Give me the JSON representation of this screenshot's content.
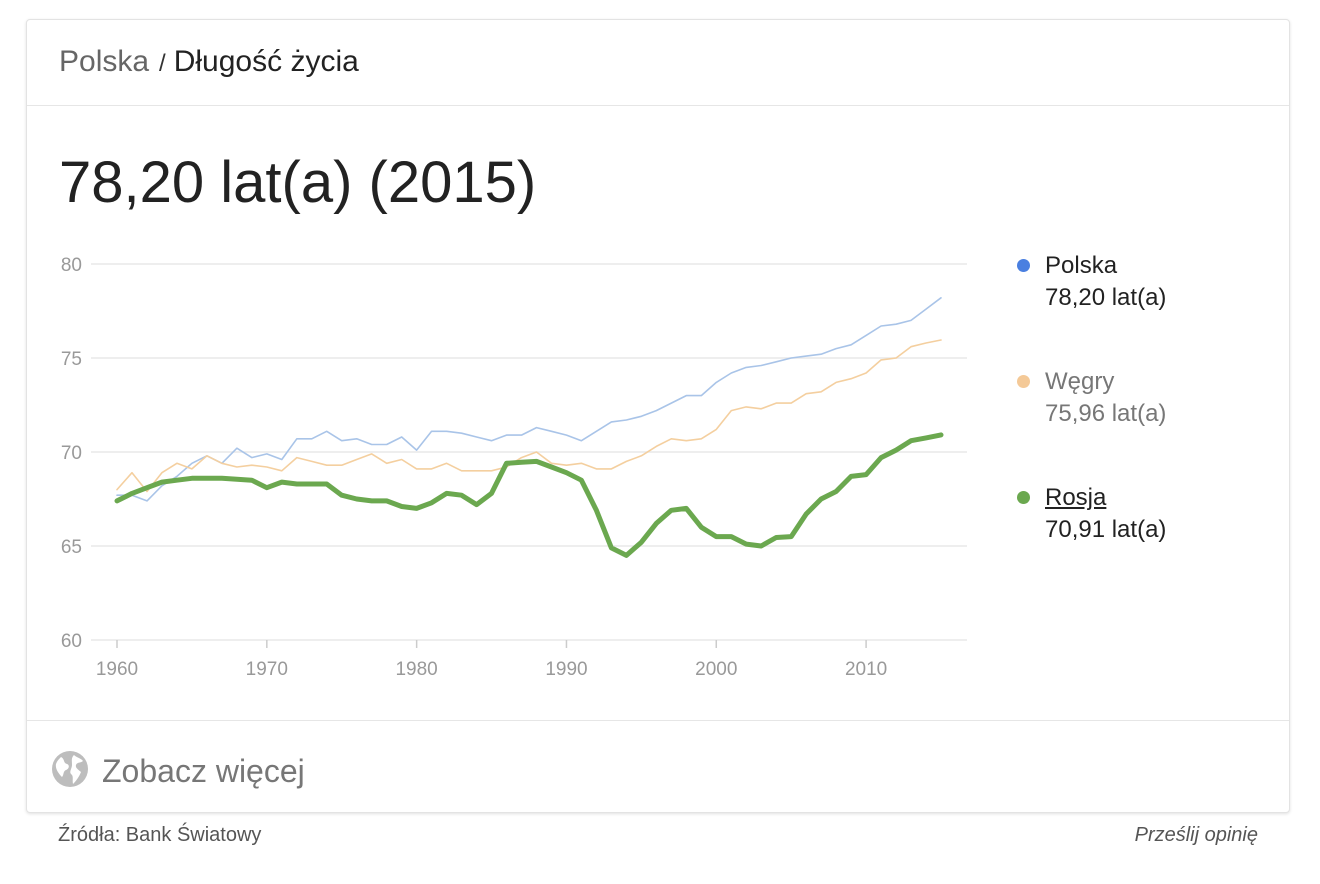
{
  "breadcrumb": {
    "parent": "Polska",
    "separator": "/",
    "current": "Długość życia"
  },
  "headline_value": "78,20 lat(a) (2015)",
  "legend": [
    {
      "name": "Polska",
      "value": "78,20 lat(a)",
      "color": "#4a7fe0",
      "selected": false
    },
    {
      "name": "Węgry",
      "value": "75,96 lat(a)",
      "color": "#f4c997",
      "selected": false
    },
    {
      "name": "Rosja",
      "value": "70,91 lat(a)",
      "color": "#6ba84f",
      "selected": true
    }
  ],
  "chart_data": {
    "type": "line",
    "ylim": [
      60,
      80
    ],
    "xlim": [
      1960,
      2015
    ],
    "yticks": [
      60,
      65,
      70,
      75,
      80
    ],
    "xticks": [
      1960,
      1970,
      1980,
      1990,
      2000,
      2010
    ],
    "grid": true,
    "legend_placement": "right",
    "series": [
      {
        "name": "Polska",
        "color": "#a9c4e8",
        "x": [
          1960,
          1961,
          1962,
          1963,
          1964,
          1965,
          1966,
          1967,
          1968,
          1969,
          1970,
          1971,
          1972,
          1973,
          1974,
          1975,
          1976,
          1977,
          1978,
          1979,
          1980,
          1981,
          1982,
          1983,
          1984,
          1985,
          1986,
          1987,
          1988,
          1989,
          1990,
          1991,
          1992,
          1993,
          1994,
          1995,
          1996,
          1997,
          1998,
          1999,
          2000,
          2001,
          2002,
          2003,
          2004,
          2005,
          2006,
          2007,
          2008,
          2009,
          2010,
          2011,
          2012,
          2013,
          2014,
          2015
        ],
        "values": [
          67.7,
          67.7,
          67.4,
          68.2,
          68.7,
          69.4,
          69.8,
          69.4,
          70.2,
          69.7,
          69.9,
          69.6,
          70.7,
          70.7,
          71.1,
          70.6,
          70.7,
          70.4,
          70.4,
          70.8,
          70.1,
          71.1,
          71.1,
          71.0,
          70.8,
          70.6,
          70.9,
          70.9,
          71.3,
          71.1,
          70.9,
          70.6,
          71.1,
          71.6,
          71.7,
          71.9,
          72.2,
          72.6,
          73.0,
          73.0,
          73.7,
          74.2,
          74.5,
          74.6,
          74.8,
          75.0,
          75.1,
          75.2,
          75.5,
          75.7,
          76.2,
          76.7,
          76.8,
          77.0,
          77.6,
          78.2
        ]
      },
      {
        "name": "Węgry",
        "color": "#f4cf9f",
        "x": [
          1960,
          1961,
          1962,
          1963,
          1964,
          1965,
          1966,
          1967,
          1968,
          1969,
          1970,
          1971,
          1972,
          1973,
          1974,
          1975,
          1976,
          1977,
          1978,
          1979,
          1980,
          1981,
          1982,
          1983,
          1984,
          1985,
          1986,
          1987,
          1988,
          1989,
          1990,
          1991,
          1992,
          1993,
          1994,
          1995,
          1996,
          1997,
          1998,
          1999,
          2000,
          2001,
          2002,
          2003,
          2004,
          2005,
          2006,
          2007,
          2008,
          2009,
          2010,
          2011,
          2012,
          2013,
          2014,
          2015
        ],
        "values": [
          68.0,
          68.9,
          67.9,
          68.9,
          69.4,
          69.1,
          69.8,
          69.4,
          69.2,
          69.3,
          69.2,
          69.0,
          69.7,
          69.5,
          69.3,
          69.3,
          69.6,
          69.9,
          69.4,
          69.6,
          69.1,
          69.1,
          69.4,
          69.0,
          69.0,
          69.0,
          69.2,
          69.7,
          70.0,
          69.4,
          69.3,
          69.4,
          69.1,
          69.1,
          69.5,
          69.8,
          70.3,
          70.7,
          70.6,
          70.7,
          71.2,
          72.2,
          72.4,
          72.3,
          72.6,
          72.6,
          73.1,
          73.2,
          73.7,
          73.9,
          74.2,
          74.9,
          75.0,
          75.6,
          75.8,
          75.96
        ]
      },
      {
        "name": "Rosja",
        "color": "#6ba84f",
        "x": [
          1960,
          1961,
          1962,
          1963,
          1964,
          1965,
          1966,
          1967,
          1968,
          1969,
          1970,
          1971,
          1972,
          1973,
          1974,
          1975,
          1976,
          1977,
          1978,
          1979,
          1980,
          1981,
          1982,
          1983,
          1984,
          1985,
          1986,
          1987,
          1988,
          1989,
          1990,
          1991,
          1992,
          1993,
          1994,
          1995,
          1996,
          1997,
          1998,
          1999,
          2000,
          2001,
          2002,
          2003,
          2004,
          2005,
          2006,
          2007,
          2008,
          2009,
          2010,
          2011,
          2012,
          2013,
          2014,
          2015
        ],
        "values": [
          67.4,
          67.8,
          68.1,
          68.4,
          68.5,
          68.6,
          68.6,
          68.6,
          68.55,
          68.5,
          68.1,
          68.4,
          68.3,
          68.3,
          68.3,
          67.7,
          67.5,
          67.4,
          67.4,
          67.1,
          67.0,
          67.3,
          67.8,
          67.7,
          67.2,
          67.8,
          69.4,
          69.45,
          69.5,
          69.2,
          68.9,
          68.5,
          66.9,
          64.9,
          64.5,
          65.2,
          66.2,
          66.9,
          67.0,
          66.0,
          65.5,
          65.5,
          65.1,
          65.0,
          65.45,
          65.5,
          66.7,
          67.5,
          67.9,
          68.7,
          68.8,
          69.7,
          70.1,
          70.6,
          70.75,
          70.91
        ]
      }
    ]
  },
  "footer": {
    "see_more": "Zobacz więcej",
    "source": "Źródła: Bank Światowy",
    "feedback": "Prześlij opinię"
  }
}
